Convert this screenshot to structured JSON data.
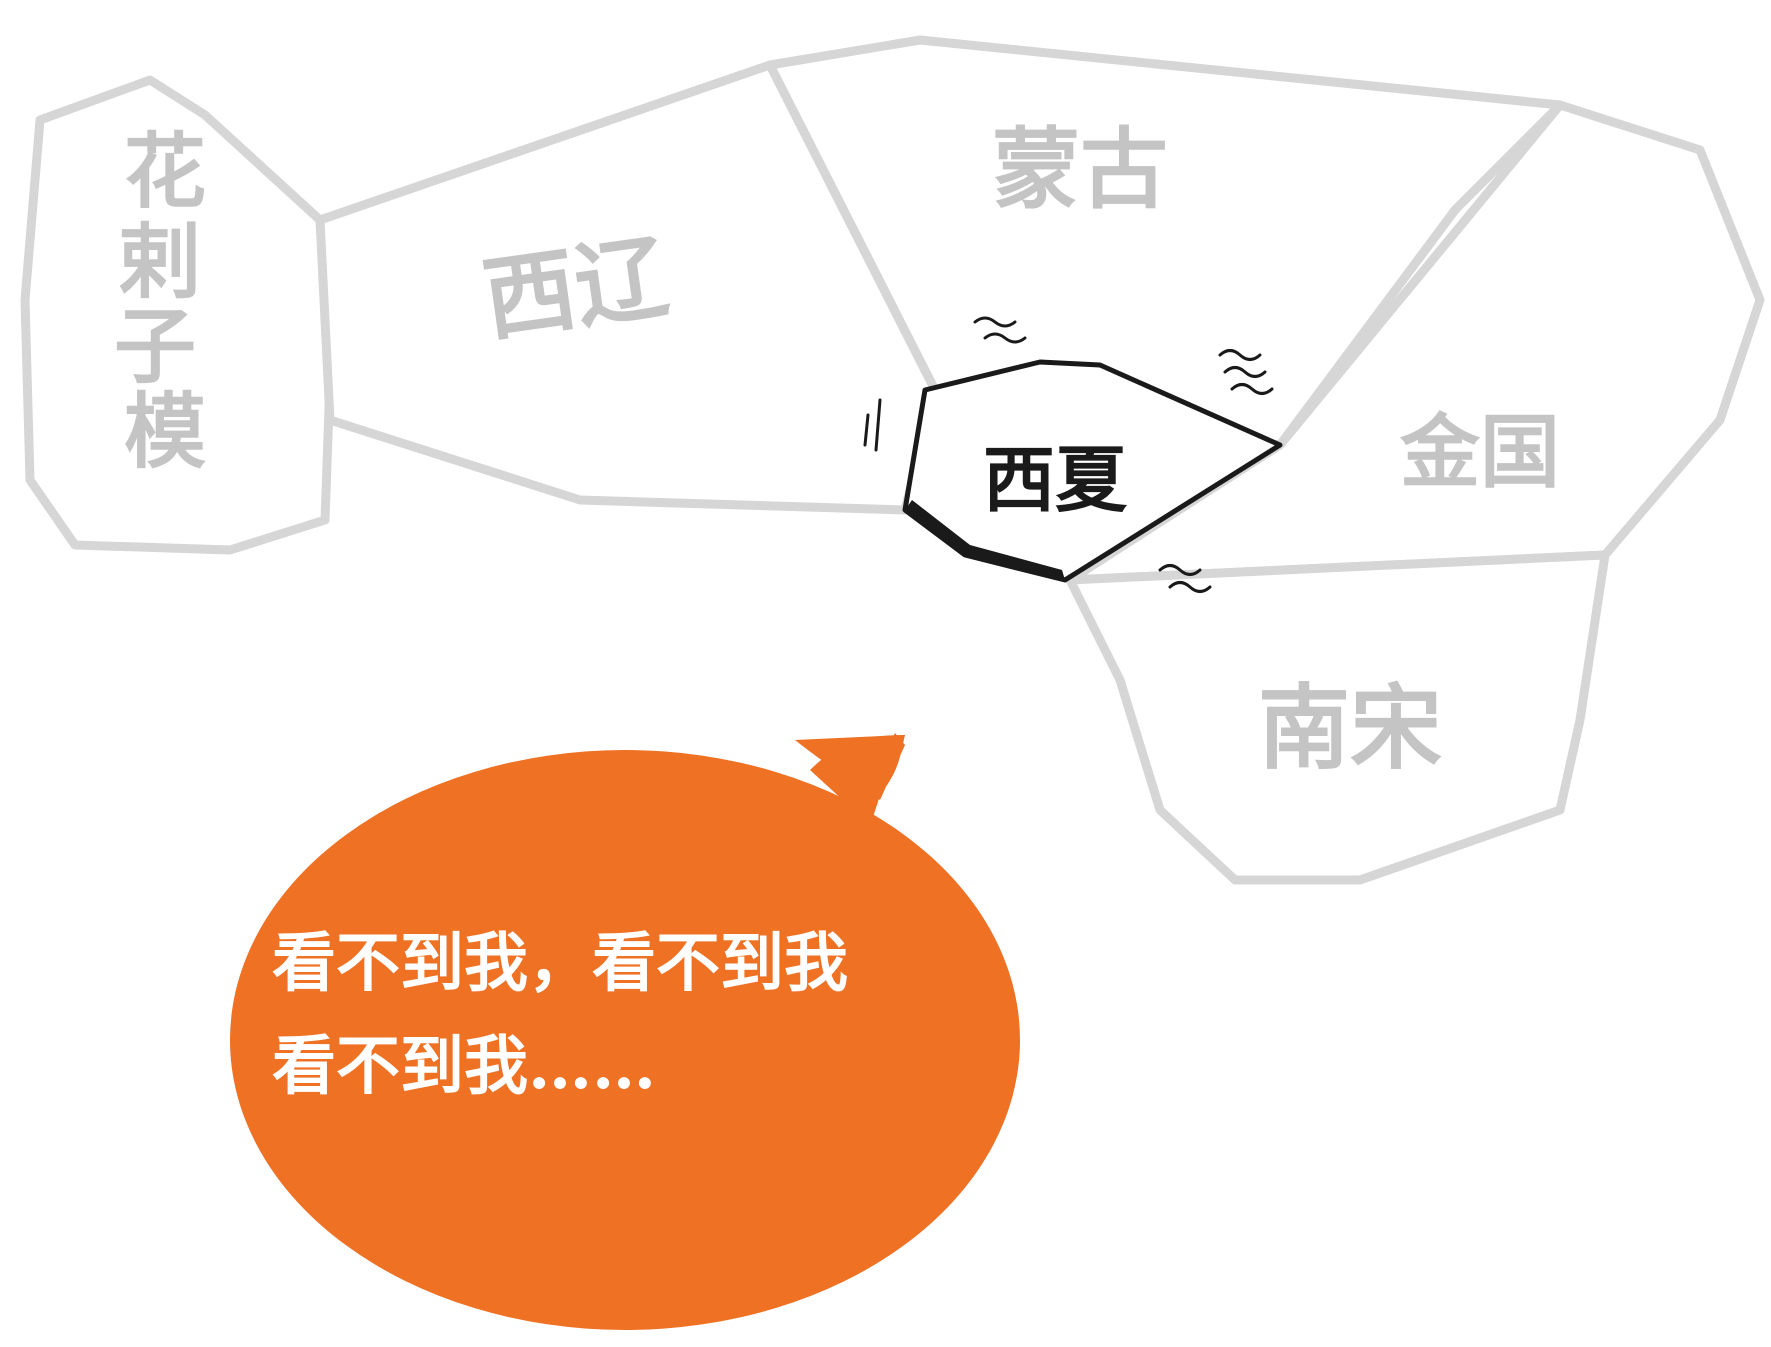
{
  "map": {
    "regions": [
      {
        "id": "huacizimo",
        "label": "花剌子模"
      },
      {
        "id": "xiliao",
        "label": "西辽"
      },
      {
        "id": "menggu",
        "label": "蒙古"
      },
      {
        "id": "jinguo",
        "label": "金国"
      },
      {
        "id": "nansong",
        "label": "南宋"
      }
    ],
    "highlight": {
      "id": "xixia",
      "label": "西夏"
    }
  },
  "bubble": {
    "line1": "看不到我，看不到我",
    "line2": "看不到我……"
  },
  "colors": {
    "region_stroke": "#d6d6d6",
    "region_label": "#c4c4c4",
    "highlight_stroke": "#1a1a1a",
    "bubble_fill": "#ee7124",
    "bubble_text": "#ffffff"
  }
}
